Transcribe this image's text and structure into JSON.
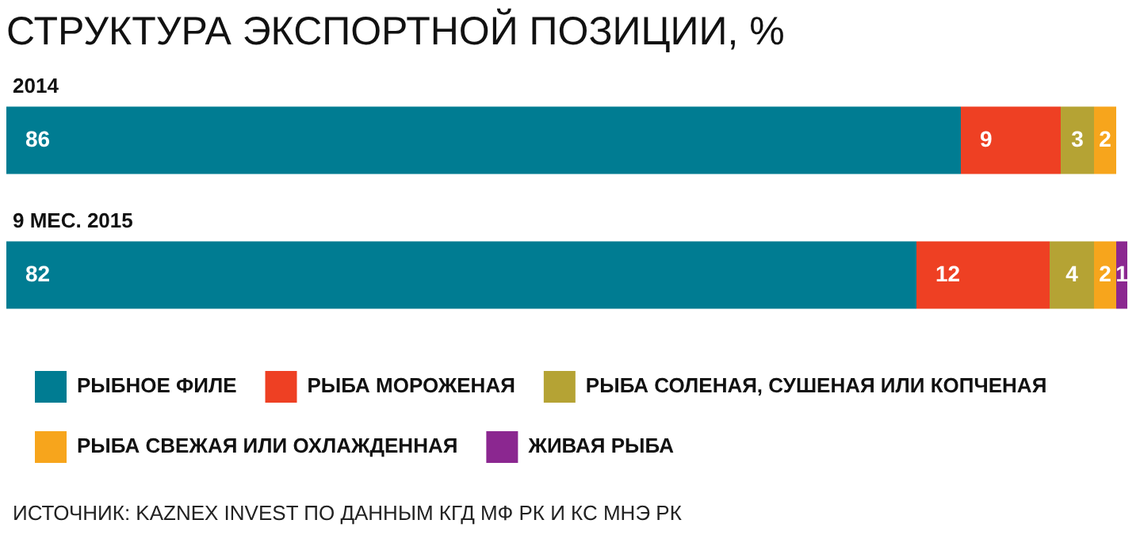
{
  "chart_data": {
    "type": "bar",
    "orientation": "horizontal",
    "stacked": true,
    "title": "СТРУКТУРА ЭКСПОРТНОЙ ПОЗИЦИИ, %",
    "categories": [
      "2014",
      "9 МЕС. 2015"
    ],
    "series": [
      {
        "name": "РЫБНОЕ ФИЛЕ",
        "color": "#007c92",
        "values": [
          86,
          82
        ]
      },
      {
        "name": "РЫБА МОРОЖЕНАЯ",
        "color": "#ee4023",
        "values": [
          9,
          12
        ]
      },
      {
        "name": "РЫБА СОЛЕНАЯ, СУШЕНАЯ ИЛИ КОПЧЕНАЯ",
        "color": "#b5a334",
        "values": [
          3,
          4
        ]
      },
      {
        "name": "РЫБА СВЕЖАЯ ИЛИ ОХЛАЖДЕННАЯ",
        "color": "#f7a51c",
        "values": [
          2,
          2
        ]
      },
      {
        "name": "ЖИВАЯ РЫБА",
        "color": "#8b2790",
        "values": [
          null,
          1
        ]
      }
    ],
    "xlim": [
      0,
      101
    ],
    "tick_labels": "y",
    "legend": "bottom",
    "data_labels": true,
    "annotations": [
      "ИСТОЧНИК: KAZNEX INVEST ПО ДАННЫМ КГД МФ РК И КС МНЭ РК"
    ]
  }
}
